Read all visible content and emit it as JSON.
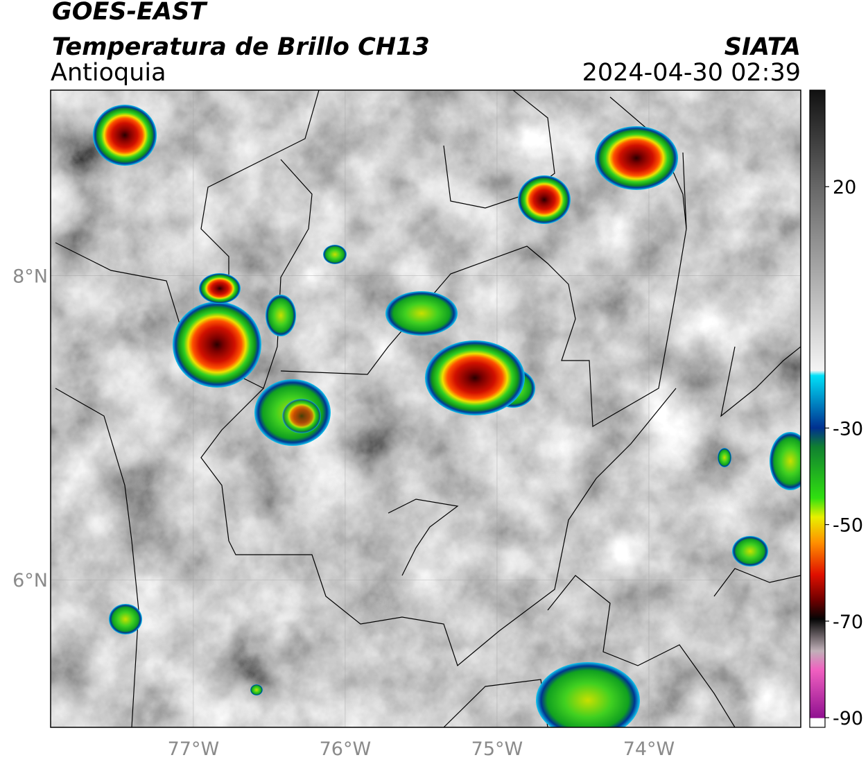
{
  "header": {
    "title": "GOES-EAST",
    "subtitle": "Temperatura de Brillo CH13",
    "region": "Antioquia",
    "source": "SIATA",
    "datetime": "2024-04-30 02:39"
  },
  "map": {
    "xlim": [
      -77.94,
      -73.0
    ],
    "ylim": [
      5.03,
      9.22
    ],
    "xticks": [
      {
        "value": -77,
        "label": "77°W"
      },
      {
        "value": -76,
        "label": "76°W"
      },
      {
        "value": -75,
        "label": "75°W"
      },
      {
        "value": -74,
        "label": "74°W"
      }
    ],
    "yticks": [
      {
        "value": 8,
        "label": "8°N"
      },
      {
        "value": 6,
        "label": "6°N"
      }
    ]
  },
  "colorbar": {
    "lim": [
      -92,
      40
    ],
    "ticks": [
      20,
      -30,
      -50,
      -70,
      -90
    ]
  }
}
